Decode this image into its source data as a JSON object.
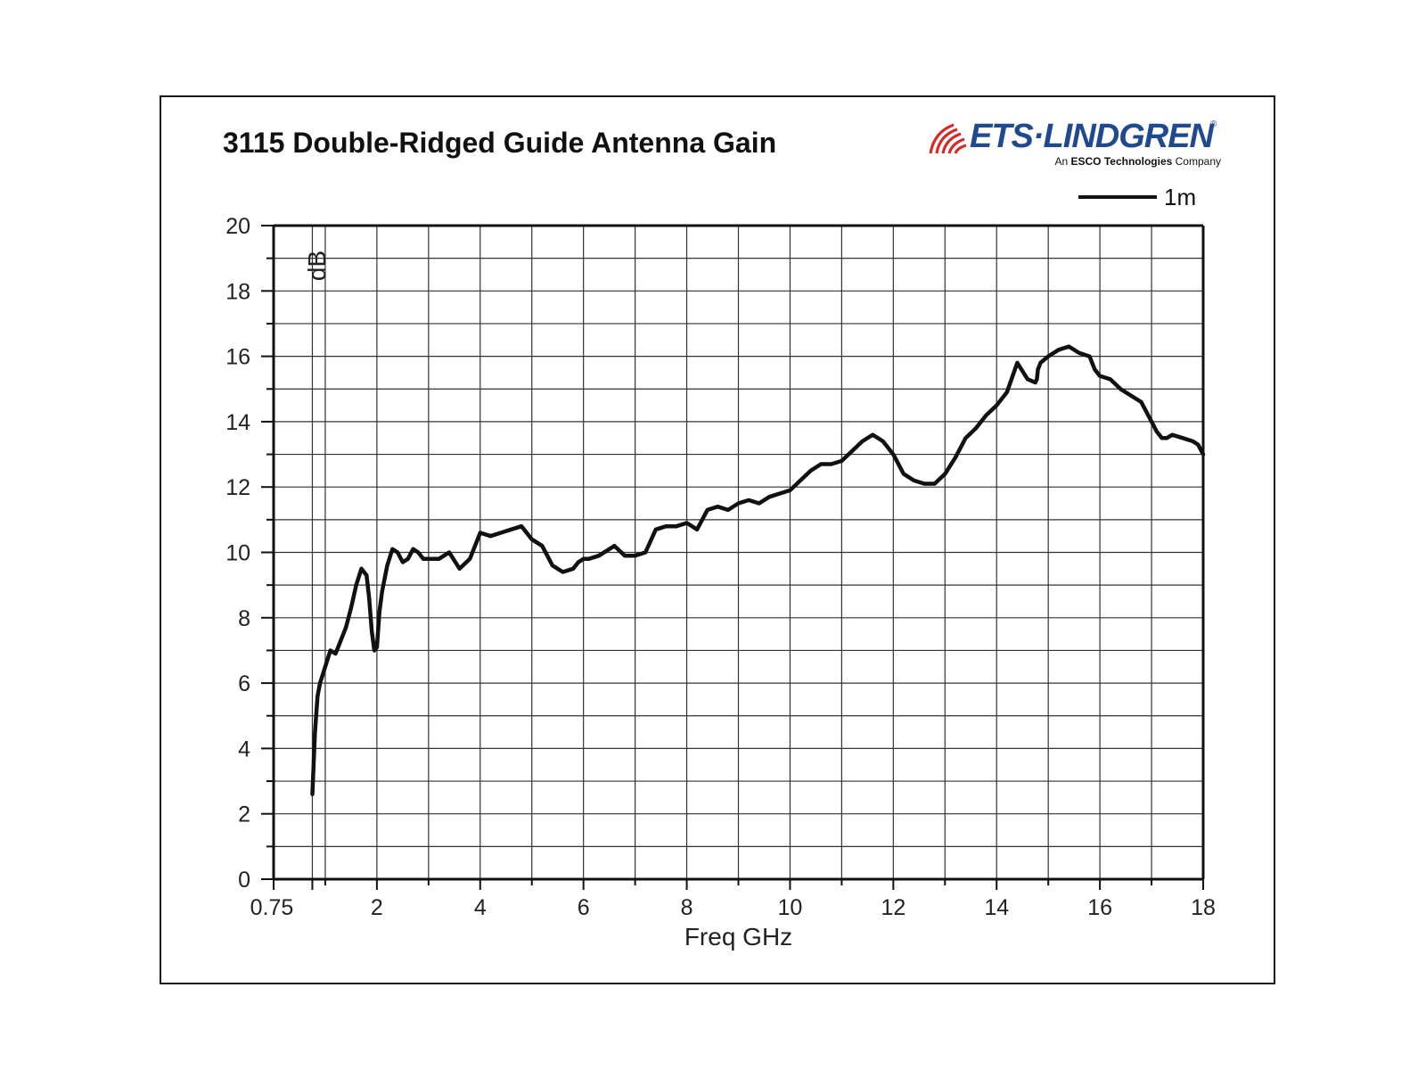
{
  "chart_data": {
    "type": "line",
    "title": "3115 Double-Ridged Guide Antenna Gain",
    "xlabel": "Freq GHz",
    "ylabel": "dB",
    "xlim": [
      0.75,
      18
    ],
    "ylim": [
      0,
      20
    ],
    "x_ticks": [
      0.75,
      2,
      4,
      6,
      8,
      10,
      12,
      14,
      16,
      18
    ],
    "x_tick_labels": [
      "0.75",
      "2",
      "4",
      "6",
      "8",
      "10",
      "12",
      "14",
      "16",
      "18"
    ],
    "y_ticks": [
      0,
      2,
      4,
      6,
      8,
      10,
      12,
      14,
      16,
      18,
      20
    ],
    "y_tick_labels": [
      "0",
      "2",
      "4",
      "6",
      "8",
      "10",
      "12",
      "14",
      "16",
      "18",
      "20"
    ],
    "grid": true,
    "legend_position": "top-right",
    "series": [
      {
        "name": "1m",
        "color": "#111111",
        "x": [
          0.75,
          0.8,
          0.85,
          0.9,
          1.0,
          1.1,
          1.2,
          1.3,
          1.4,
          1.5,
          1.6,
          1.7,
          1.8,
          1.85,
          1.9,
          1.95,
          2.0,
          2.05,
          2.1,
          2.2,
          2.3,
          2.4,
          2.5,
          2.6,
          2.7,
          2.8,
          2.9,
          3.0,
          3.2,
          3.4,
          3.6,
          3.8,
          4.0,
          4.2,
          4.4,
          4.6,
          4.8,
          5.0,
          5.2,
          5.4,
          5.6,
          5.8,
          5.9,
          6.0,
          6.1,
          6.3,
          6.6,
          6.8,
          7.0,
          7.2,
          7.4,
          7.6,
          7.8,
          8.0,
          8.2,
          8.4,
          8.6,
          8.8,
          9.0,
          9.2,
          9.4,
          9.6,
          9.8,
          10.0,
          10.2,
          10.4,
          10.6,
          10.8,
          11.0,
          11.2,
          11.4,
          11.6,
          11.8,
          12.0,
          12.2,
          12.4,
          12.6,
          12.8,
          13.0,
          13.2,
          13.4,
          13.6,
          13.8,
          14.0,
          14.2,
          14.4,
          14.6,
          14.75,
          14.78,
          14.8,
          14.85,
          15.0,
          15.2,
          15.4,
          15.6,
          15.8,
          15.9,
          16.0,
          16.2,
          16.4,
          16.6,
          16.8,
          17.0,
          17.1,
          17.2,
          17.3,
          17.4,
          17.6,
          17.8,
          17.9,
          18.0
        ],
        "y": [
          2.6,
          4.5,
          5.6,
          6.0,
          6.5,
          7.0,
          6.9,
          7.3,
          7.7,
          8.3,
          9.0,
          9.5,
          9.3,
          8.6,
          7.6,
          7.0,
          7.1,
          8.2,
          8.8,
          9.6,
          10.1,
          10.0,
          9.7,
          9.8,
          10.1,
          10.0,
          9.8,
          9.8,
          9.8,
          10.0,
          9.5,
          9.8,
          10.6,
          10.5,
          10.6,
          10.7,
          10.8,
          10.4,
          10.2,
          9.6,
          9.4,
          9.5,
          9.7,
          9.8,
          9.8,
          9.9,
          10.2,
          9.9,
          9.9,
          10.0,
          10.7,
          10.8,
          10.8,
          10.9,
          10.7,
          11.3,
          11.4,
          11.3,
          11.5,
          11.6,
          11.5,
          11.7,
          11.8,
          11.9,
          12.2,
          12.5,
          12.7,
          12.7,
          12.8,
          13.1,
          13.4,
          13.6,
          13.4,
          13.0,
          12.4,
          12.2,
          12.1,
          12.1,
          12.4,
          12.9,
          13.5,
          13.8,
          14.2,
          14.5,
          14.9,
          15.8,
          15.3,
          15.2,
          15.3,
          15.6,
          15.8,
          16.0,
          16.2,
          16.3,
          16.1,
          16.0,
          15.6,
          15.4,
          15.3,
          15.0,
          14.8,
          14.6,
          14.0,
          13.7,
          13.5,
          13.5,
          13.6,
          13.5,
          13.4,
          13.3,
          13.0
        ]
      }
    ]
  },
  "brand": {
    "name": "ETS·LINDGREN",
    "registered_mark": "®",
    "tagline_prefix": "An ",
    "tagline_bold": "ESCO Technologies",
    "tagline_suffix": " Company",
    "color": "#1f4a8f",
    "mark_color": "#d42a2a"
  }
}
